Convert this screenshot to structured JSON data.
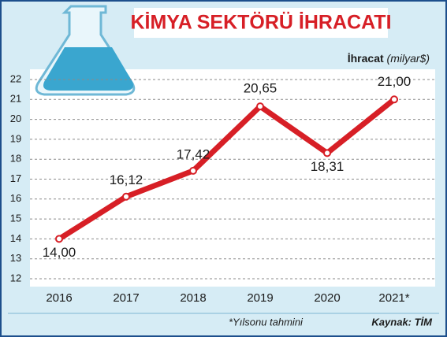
{
  "chart_data": {
    "type": "line",
    "title": "KİMYA SEKTÖRÜ İHRACATI",
    "ylabel": "İhracat",
    "ylabel_unit": "(milyar$)",
    "categories": [
      "2016",
      "2017",
      "2018",
      "2019",
      "2020",
      "2021*"
    ],
    "values": [
      14.0,
      16.12,
      17.42,
      20.65,
      18.31,
      21.0
    ],
    "value_labels": [
      "14,00",
      "16,12",
      "17,42",
      "20,65",
      "18,31",
      "21,00"
    ],
    "color": "#d71f26",
    "ylim": [
      12,
      22
    ],
    "yticks": [
      12,
      13,
      14,
      15,
      16,
      17,
      18,
      19,
      20,
      21,
      22
    ],
    "grid": true,
    "footnote": "*Yılsonu tahmini",
    "source": "Kaynak: TİM"
  }
}
